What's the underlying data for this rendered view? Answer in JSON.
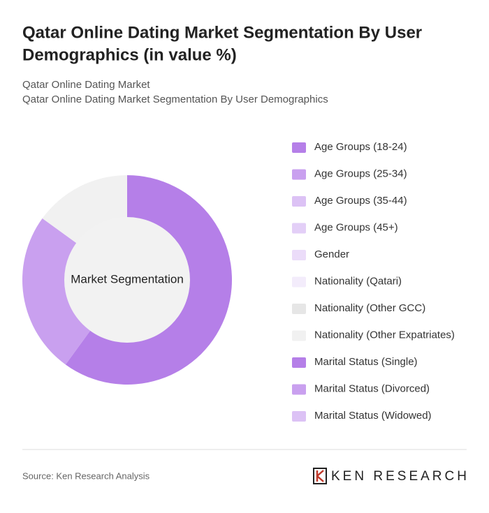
{
  "chart_data": {
    "type": "pie",
    "title": [
      "Qatar Online Dating Market Segmentation By User",
      "Demographics (in value %)"
    ],
    "subtitle": [
      "Qatar Online Dating Market",
      "Qatar Online Dating Market Segmentation By User Demographics"
    ],
    "center_label": "Market Segmentation",
    "categories": [
      "Age Groups (18-24)",
      "Age Groups (25-34)",
      "Age Groups (35-44)",
      "Age Groups (45+)",
      "Gender",
      "Nationality (Qatari)",
      "Nationality (Other GCC)",
      "Nationality (Other Expatriates)",
      "Marital Status (Single)",
      "Marital Status (Divorced)",
      "Marital Status (Widowed)"
    ],
    "colors": [
      "#b57fe8",
      "#c9a0ef",
      "#dcc2f5",
      "#e3cff7",
      "#ebdcf9",
      "#f3ecfb",
      "#e6e6e6",
      "#f1f1f1",
      "#b57fe8",
      "#c9a0ef",
      "#dcc2f5"
    ],
    "values": [
      60,
      25,
      null,
      null,
      null,
      null,
      null,
      15,
      null,
      null,
      null
    ],
    "source": "Source: Ken Research Analysis",
    "brand": "KEN RESEARCH"
  }
}
